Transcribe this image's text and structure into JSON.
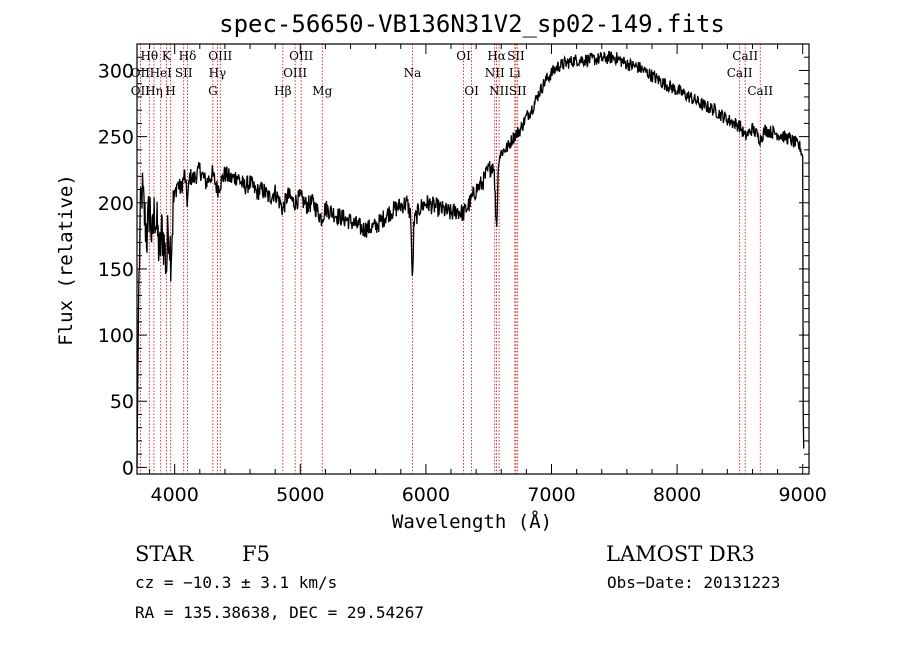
{
  "chart_data": {
    "type": "line",
    "title": "spec-56650-VB136N31V2_sp02-149.fits",
    "xlabel": "Wavelength (Å)",
    "ylabel": "Flux (relative)",
    "xlim": [
      3700,
      9050
    ],
    "ylim": [
      -5,
      320
    ],
    "xticks": [
      4000,
      5000,
      6000,
      7000,
      8000,
      9000
    ],
    "xtick_labels": [
      "4000",
      "5000",
      "6000",
      "7000",
      "8000",
      "9000"
    ],
    "yticks": [
      0,
      50,
      100,
      150,
      200,
      250,
      300
    ],
    "ytick_labels": [
      "0",
      "50",
      "100",
      "150",
      "200",
      "250",
      "300"
    ],
    "spectrum_anchors": [
      [
        3700,
        0
      ],
      [
        3712,
        120
      ],
      [
        3725,
        185
      ],
      [
        3740,
        210
      ],
      [
        3760,
        190
      ],
      [
        3780,
        175
      ],
      [
        3800,
        200
      ],
      [
        3820,
        170
      ],
      [
        3840,
        195
      ],
      [
        3860,
        180
      ],
      [
        3880,
        160
      ],
      [
        3900,
        180
      ],
      [
        3920,
        165
      ],
      [
        3935,
        150
      ],
      [
        3950,
        185
      ],
      [
        3970,
        160
      ],
      [
        3990,
        200
      ],
      [
        4020,
        215
      ],
      [
        4050,
        210
      ],
      [
        4080,
        222
      ],
      [
        4101,
        200
      ],
      [
        4120,
        220
      ],
      [
        4150,
        218
      ],
      [
        4200,
        225
      ],
      [
        4250,
        215
      ],
      [
        4300,
        222
      ],
      [
        4340,
        210
      ],
      [
        4400,
        222
      ],
      [
        4450,
        218
      ],
      [
        4500,
        220
      ],
      [
        4550,
        212
      ],
      [
        4600,
        215
      ],
      [
        4650,
        208
      ],
      [
        4700,
        210
      ],
      [
        4750,
        204
      ],
      [
        4800,
        208
      ],
      [
        4861,
        195
      ],
      [
        4900,
        206
      ],
      [
        4950,
        200
      ],
      [
        5000,
        204
      ],
      [
        5050,
        198
      ],
      [
        5100,
        200
      ],
      [
        5170,
        188
      ],
      [
        5200,
        196
      ],
      [
        5300,
        190
      ],
      [
        5400,
        186
      ],
      [
        5500,
        180
      ],
      [
        5600,
        182
      ],
      [
        5700,
        192
      ],
      [
        5800,
        198
      ],
      [
        5850,
        200
      ],
      [
        5880,
        190
      ],
      [
        5893,
        135
      ],
      [
        5905,
        185
      ],
      [
        5950,
        196
      ],
      [
        6000,
        200
      ],
      [
        6100,
        196
      ],
      [
        6200,
        192
      ],
      [
        6250,
        194
      ],
      [
        6300,
        192
      ],
      [
        6350,
        200
      ],
      [
        6400,
        210
      ],
      [
        6450,
        215
      ],
      [
        6500,
        225
      ],
      [
        6540,
        230
      ],
      [
        6563,
        180
      ],
      [
        6580,
        235
      ],
      [
        6600,
        238
      ],
      [
        6650,
        242
      ],
      [
        6700,
        250
      ],
      [
        6750,
        255
      ],
      [
        6800,
        265
      ],
      [
        6850,
        272
      ],
      [
        6900,
        283
      ],
      [
        6950,
        292
      ],
      [
        7000,
        298
      ],
      [
        7050,
        303
      ],
      [
        7100,
        305
      ],
      [
        7200,
        308
      ],
      [
        7300,
        308
      ],
      [
        7400,
        309
      ],
      [
        7500,
        310
      ],
      [
        7600,
        305
      ],
      [
        7700,
        302
      ],
      [
        7800,
        296
      ],
      [
        7900,
        290
      ],
      [
        8000,
        285
      ],
      [
        8100,
        280
      ],
      [
        8200,
        274
      ],
      [
        8300,
        270
      ],
      [
        8400,
        263
      ],
      [
        8500,
        258
      ],
      [
        8542,
        250
      ],
      [
        8600,
        256
      ],
      [
        8662,
        248
      ],
      [
        8700,
        255
      ],
      [
        8800,
        252
      ],
      [
        8900,
        248
      ],
      [
        8980,
        242
      ],
      [
        9000,
        235
      ],
      [
        9003,
        50
      ],
      [
        9010,
        0
      ]
    ],
    "noise_regions": [
      {
        "x_from": 3700,
        "x_to": 4000,
        "amplitude": 22
      },
      {
        "x_from": 4000,
        "x_to": 6600,
        "amplitude": 7
      },
      {
        "x_from": 6600,
        "x_to": 9000,
        "amplitude": 5
      }
    ],
    "spectral_lines": [
      {
        "label": "Hθ",
        "x": 3798,
        "row": 0
      },
      {
        "label": "K",
        "x": 3934,
        "row": 0
      },
      {
        "label": "Hδ",
        "x": 4102,
        "row": 0
      },
      {
        "label": "OIII",
        "x": 4363,
        "row": 0
      },
      {
        "label": "OIII",
        "x": 5007,
        "row": 0
      },
      {
        "label": "OI",
        "x": 6300,
        "row": 0
      },
      {
        "label": "Hα",
        "x": 6563,
        "row": 0
      },
      {
        "label": "SII",
        "x": 6717,
        "row": 0
      },
      {
        "label": "CaII",
        "x": 8542,
        "row": 0
      },
      {
        "label": "OII",
        "x": 3727,
        "row": 1
      },
      {
        "label": "HeI",
        "x": 3889,
        "row": 1
      },
      {
        "label": "SII",
        "x": 4072,
        "row": 1
      },
      {
        "label": "Hγ",
        "x": 4340,
        "row": 1
      },
      {
        "label": "OIII",
        "x": 4959,
        "row": 1
      },
      {
        "label": "Na",
        "x": 5893,
        "row": 1
      },
      {
        "label": "NII",
        "x": 6548,
        "row": 1
      },
      {
        "label": "Li",
        "x": 6708,
        "row": 1
      },
      {
        "label": "CaII",
        "x": 8498,
        "row": 1
      },
      {
        "label": "OII",
        "x": 3727,
        "row": 2
      },
      {
        "label": "Hη",
        "x": 3835,
        "row": 2
      },
      {
        "label": "H",
        "x": 3968,
        "row": 2
      },
      {
        "label": "G",
        "x": 4304,
        "row": 2
      },
      {
        "label": "Hβ",
        "x": 4861,
        "row": 2
      },
      {
        "label": "Mg",
        "x": 5175,
        "row": 2
      },
      {
        "label": "OI",
        "x": 6364,
        "row": 2
      },
      {
        "label": "NII",
        "x": 6583,
        "row": 2
      },
      {
        "label": "SII",
        "x": 6731,
        "row": 2
      },
      {
        "label": "CaII",
        "x": 8662,
        "row": 2
      }
    ]
  },
  "info": {
    "object_class": "STAR",
    "subclass": "F5",
    "survey": "LAMOST DR3",
    "redshift": "cz = −10.3 ± 3.1 km/s",
    "obs_date": "Obs−Date: 20131223",
    "coords": "RA = 135.38638, DEC =  29.54267"
  },
  "colors": {
    "line_marker": "#cc0000",
    "spectrum": "#000000",
    "axis": "#000000"
  }
}
